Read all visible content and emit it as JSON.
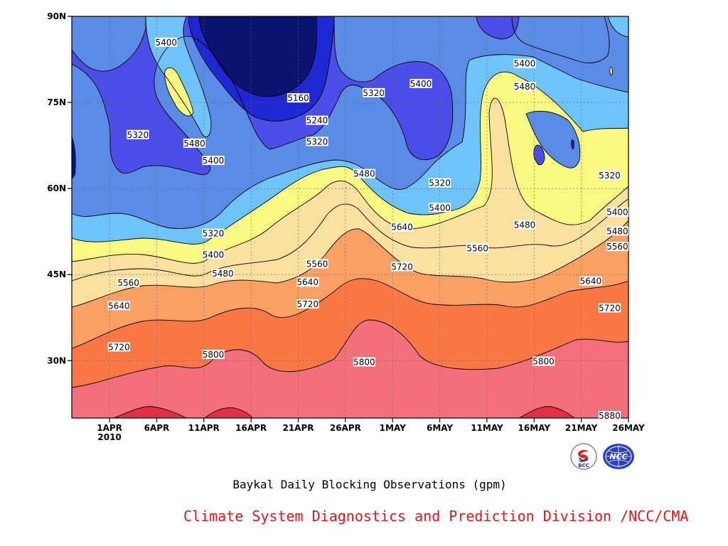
{
  "chart_data": {
    "type": "contour",
    "title": "Baykal Daily Blocking Observations (gpm)",
    "x_axis": {
      "ticks": [
        "1APR",
        "6APR",
        "11APR",
        "16APR",
        "21APR",
        "26APR",
        "1MAY",
        "6MAY",
        "11MAY",
        "16MAY",
        "21MAY",
        "26MAY"
      ],
      "tick_days": [
        4,
        9,
        14,
        19,
        24,
        29,
        34,
        39,
        44,
        49,
        54,
        59
      ],
      "year_label": "2010",
      "range_days": [
        0,
        59
      ]
    },
    "y_axis": {
      "ticks": [
        "30N",
        "45N",
        "60N",
        "75N",
        "90N"
      ],
      "tick_values": [
        30,
        45,
        60,
        75,
        90
      ],
      "range": [
        20,
        90
      ]
    },
    "grid": true,
    "levels": [
      5160,
      5240,
      5320,
      5400,
      5480,
      5560,
      5640,
      5720,
      5800,
      5880
    ],
    "fill_colors": {
      "below_5160": "#0a1470",
      "5160_5240": "#1e28d2",
      "5240_5320": "#4b4ee8",
      "5320_5400": "#5a8ce6",
      "5400_5480": "#6ec3fa",
      "5480_5560": "#fafa82",
      "5560_5640": "#fae1a0",
      "5640_5720": "#faa064",
      "5720_5800": "#fa7846",
      "5800_5880": "#f26f7b",
      "above_5880": "#e62d46"
    },
    "contour_labels": [
      {
        "text": "5400",
        "day": 10,
        "lat": 85.5
      },
      {
        "text": "5320",
        "day": 7,
        "lat": 69.4
      },
      {
        "text": "5480",
        "day": 13,
        "lat": 67.9
      },
      {
        "text": "5400",
        "day": 15,
        "lat": 64.9
      },
      {
        "text": "5160",
        "day": 24,
        "lat": 75.8
      },
      {
        "text": "5240",
        "day": 26,
        "lat": 71.9
      },
      {
        "text": "5320",
        "day": 26,
        "lat": 68.2
      },
      {
        "text": "5320",
        "day": 32,
        "lat": 76.7
      },
      {
        "text": "5400",
        "day": 37,
        "lat": 78.3
      },
      {
        "text": "5480",
        "day": 31,
        "lat": 62.6
      },
      {
        "text": "5320",
        "day": 39,
        "lat": 61.0
      },
      {
        "text": "5400",
        "day": 39,
        "lat": 56.7
      },
      {
        "text": "5400",
        "day": 48,
        "lat": 81.8
      },
      {
        "text": "5480",
        "day": 48,
        "lat": 77.8
      },
      {
        "text": "5320",
        "day": 57,
        "lat": 62.3
      },
      {
        "text": "5480",
        "day": 48,
        "lat": 53.7
      },
      {
        "text": "5400",
        "day": 61,
        "lat": 55.9
      },
      {
        "text": "5480",
        "day": 61,
        "lat": 52.6
      },
      {
        "text": "5560",
        "day": 61,
        "lat": 49.9
      },
      {
        "text": "5320",
        "day": 15,
        "lat": 52.2
      },
      {
        "text": "5400",
        "day": 15,
        "lat": 48.5
      },
      {
        "text": "5480",
        "day": 16,
        "lat": 45.2
      },
      {
        "text": "5560",
        "day": 6,
        "lat": 43.6
      },
      {
        "text": "5640",
        "day": 5,
        "lat": 39.6
      },
      {
        "text": "5720",
        "day": 5,
        "lat": 32.4
      },
      {
        "text": "5560",
        "day": 26,
        "lat": 46.9
      },
      {
        "text": "5640",
        "day": 25,
        "lat": 43.7
      },
      {
        "text": "5720",
        "day": 25,
        "lat": 39.9
      },
      {
        "text": "5800",
        "day": 15,
        "lat": 31.1
      },
      {
        "text": "5640",
        "day": 35,
        "lat": 53.3
      },
      {
        "text": "5720",
        "day": 35,
        "lat": 46.4
      },
      {
        "text": "5560",
        "day": 43,
        "lat": 49.6
      },
      {
        "text": "5640",
        "day": 55,
        "lat": 43.9
      },
      {
        "text": "5720",
        "day": 57,
        "lat": 39.2
      },
      {
        "text": "5800",
        "day": 31,
        "lat": 29.8
      },
      {
        "text": "5800",
        "day": 50,
        "lat": 29.9
      },
      {
        "text": "5880",
        "day": 57,
        "lat": 20.0
      }
    ]
  },
  "caption": "Baykal Daily Blocking Observations (gpm)",
  "credit": "Climate System Diagnostics and Prediction Division /NCC/CMA",
  "logos": [
    {
      "icon": "bcc-logo-icon",
      "text": "BCC"
    },
    {
      "icon": "ncc-logo-icon",
      "text": "NCC"
    }
  ]
}
